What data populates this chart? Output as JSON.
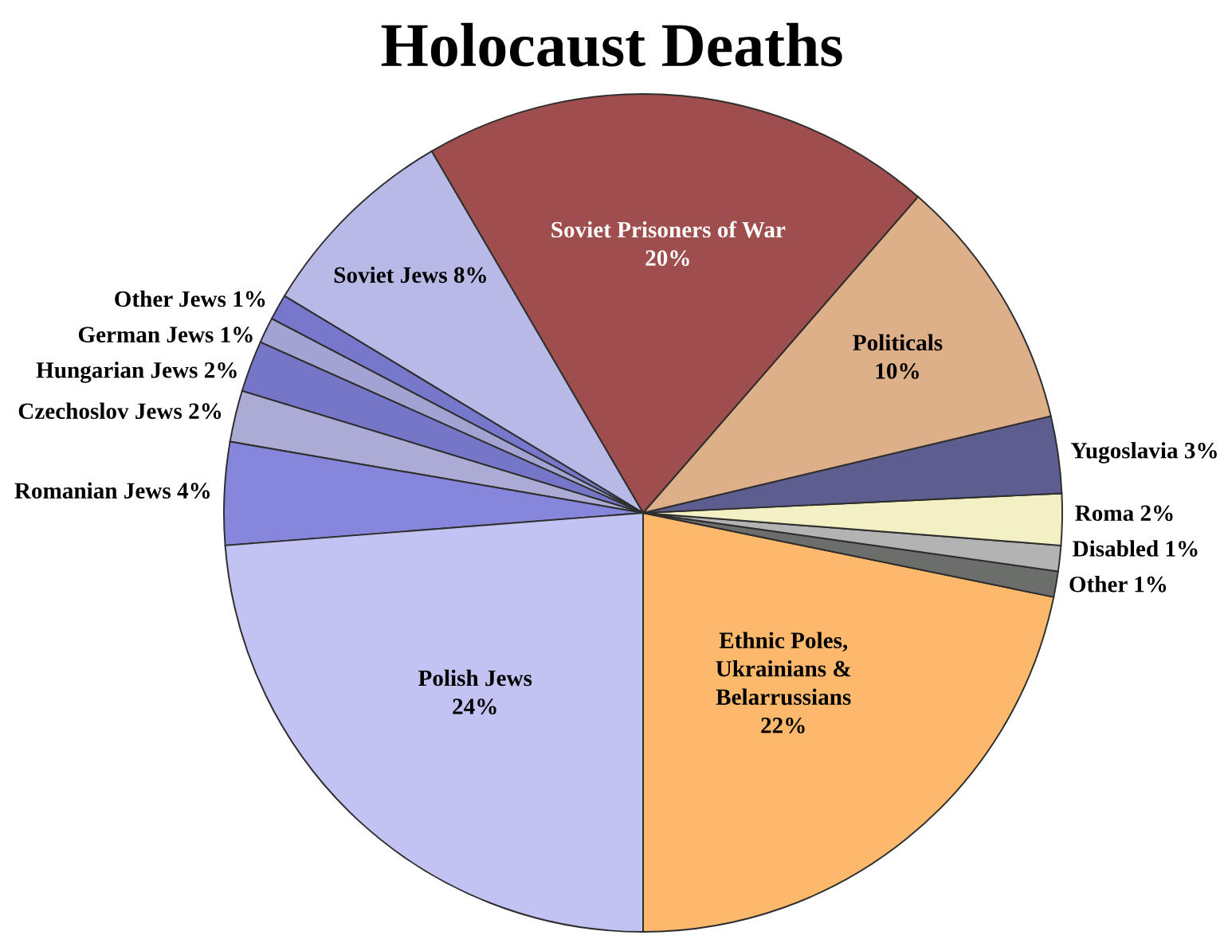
{
  "chart_data": {
    "type": "pie",
    "title": "Holocaust Deaths",
    "categories": [
      "Ethnic Poles,\nUkrainians &\nBelarrussians",
      "Other",
      "Disabled",
      "Roma",
      "Yugoslavia",
      "Politicals",
      "Soviet Prisoners of War",
      "Soviet Jews",
      "Other Jews",
      "German Jews",
      "Hungarian Jews",
      "Czechoslov Jews",
      "Romanian Jews",
      "Polish Jews"
    ],
    "values": [
      22,
      1,
      1,
      2,
      3,
      10,
      20,
      8,
      1,
      1,
      2,
      2,
      4,
      24
    ],
    "colors": [
      "#fdb96b",
      "#6b6e6a",
      "#b3b3b3",
      "#f3f0c3",
      "#5e5d90",
      "#deb089",
      "#9e4e4c",
      "#b9b9e8",
      "#7777cc",
      "#a3a3d3",
      "#7676c8",
      "#ababd6",
      "#8686dc",
      "#c3c3f3"
    ],
    "value_labels": [
      "22%",
      "1%",
      "1%",
      "2%",
      "3%",
      "10%",
      "20%",
      "8%",
      "1%",
      "1%",
      "2%",
      "2%",
      "4%",
      "24%"
    ]
  }
}
